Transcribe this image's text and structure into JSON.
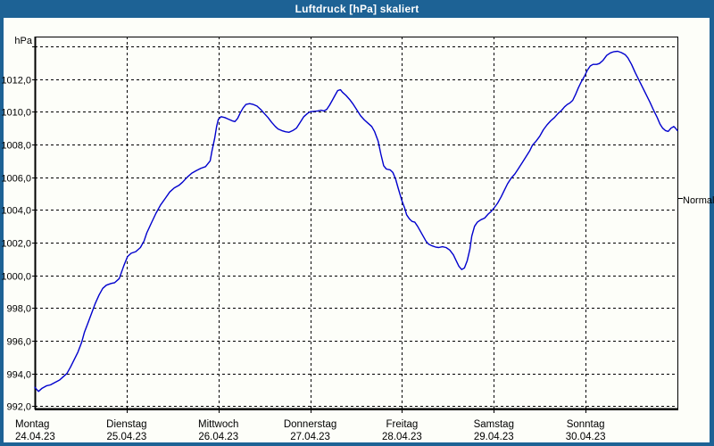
{
  "window": {
    "title": "Luftdruck [hPa] skaliert"
  },
  "colors": {
    "titlebar": "#1D6295",
    "frame": "#1D6295",
    "client_bg": "#FDFEF9",
    "line": "#0000CD",
    "grid": "#000000",
    "text": "#000000",
    "title_text": "#FFFFFF"
  },
  "axis": {
    "unit_label": "hPa",
    "decimal_separator": ",",
    "y_label_min": 992,
    "y_label_max": 1012,
    "y_tick_step": 2
  },
  "normal_marker": {
    "label": "Normal",
    "value": 1004.7
  },
  "chart_data": {
    "type": "line",
    "title": "Luftdruck [hPa] skaliert",
    "ylabel": "hPa",
    "ylim": [
      991.8,
      1014.6
    ],
    "xlim": [
      0,
      7
    ],
    "grid": true,
    "legend": "none",
    "y_gridline_values": [
      992,
      994,
      996,
      998,
      1000,
      1002,
      1004,
      1006,
      1008,
      1010,
      1012,
      1014
    ],
    "x_categories": [
      {
        "name": "Montag",
        "date": "24.04.23"
      },
      {
        "name": "Dienstag",
        "date": "25.04.23"
      },
      {
        "name": "Mittwoch",
        "date": "26.04.23"
      },
      {
        "name": "Donnerstag",
        "date": "27.04.23"
      },
      {
        "name": "Freitag",
        "date": "28.04.23"
      },
      {
        "name": "Samstag",
        "date": "29.04.23"
      },
      {
        "name": "Sonntag",
        "date": "30.04.23"
      }
    ],
    "annotations": [
      {
        "label": "Normal",
        "y": 1004.7,
        "side": "right"
      }
    ],
    "series": [
      {
        "name": "Luftdruck skaliert",
        "color": "#0000CD",
        "x_unit": "days since 24.04.23 00:00",
        "points": [
          [
            0.0,
            993.15
          ],
          [
            0.04,
            992.9
          ],
          [
            0.08,
            993.1
          ],
          [
            0.13,
            993.25
          ],
          [
            0.17,
            993.3
          ],
          [
            0.22,
            993.45
          ],
          [
            0.27,
            993.6
          ],
          [
            0.31,
            993.8
          ],
          [
            0.35,
            994.0
          ],
          [
            0.39,
            994.4
          ],
          [
            0.43,
            994.85
          ],
          [
            0.47,
            995.3
          ],
          [
            0.51,
            995.9
          ],
          [
            0.54,
            996.5
          ],
          [
            0.58,
            997.1
          ],
          [
            0.62,
            997.7
          ],
          [
            0.66,
            998.3
          ],
          [
            0.7,
            998.8
          ],
          [
            0.74,
            999.2
          ],
          [
            0.78,
            999.4
          ],
          [
            0.83,
            999.5
          ],
          [
            0.87,
            999.55
          ],
          [
            0.92,
            999.8
          ],
          [
            0.97,
            1000.6
          ],
          [
            1.01,
            1001.15
          ],
          [
            1.05,
            1001.35
          ],
          [
            1.1,
            1001.45
          ],
          [
            1.15,
            1001.7
          ],
          [
            1.19,
            1002.1
          ],
          [
            1.22,
            1002.6
          ],
          [
            1.27,
            1003.2
          ],
          [
            1.32,
            1003.8
          ],
          [
            1.37,
            1004.3
          ],
          [
            1.42,
            1004.7
          ],
          [
            1.47,
            1005.1
          ],
          [
            1.52,
            1005.35
          ],
          [
            1.57,
            1005.5
          ],
          [
            1.61,
            1005.7
          ],
          [
            1.66,
            1006.0
          ],
          [
            1.71,
            1006.25
          ],
          [
            1.76,
            1006.4
          ],
          [
            1.81,
            1006.55
          ],
          [
            1.86,
            1006.65
          ],
          [
            1.91,
            1007.0
          ],
          [
            1.93,
            1007.6
          ],
          [
            1.96,
            1008.4
          ],
          [
            1.98,
            1009.1
          ],
          [
            2.0,
            1009.55
          ],
          [
            2.03,
            1009.7
          ],
          [
            2.07,
            1009.65
          ],
          [
            2.11,
            1009.55
          ],
          [
            2.15,
            1009.45
          ],
          [
            2.18,
            1009.4
          ],
          [
            2.21,
            1009.6
          ],
          [
            2.24,
            1009.95
          ],
          [
            2.27,
            1010.25
          ],
          [
            2.3,
            1010.45
          ],
          [
            2.34,
            1010.5
          ],
          [
            2.38,
            1010.45
          ],
          [
            2.42,
            1010.35
          ],
          [
            2.46,
            1010.15
          ],
          [
            2.5,
            1009.9
          ],
          [
            2.54,
            1009.65
          ],
          [
            2.58,
            1009.35
          ],
          [
            2.62,
            1009.1
          ],
          [
            2.65,
            1008.95
          ],
          [
            2.69,
            1008.85
          ],
          [
            2.73,
            1008.78
          ],
          [
            2.77,
            1008.75
          ],
          [
            2.81,
            1008.85
          ],
          [
            2.85,
            1009.0
          ],
          [
            2.89,
            1009.35
          ],
          [
            2.93,
            1009.7
          ],
          [
            2.97,
            1009.9
          ],
          [
            3.0,
            1010.0
          ],
          [
            3.04,
            1010.03
          ],
          [
            3.08,
            1010.05
          ],
          [
            3.12,
            1010.1
          ],
          [
            3.15,
            1010.05
          ],
          [
            3.18,
            1010.15
          ],
          [
            3.21,
            1010.4
          ],
          [
            3.24,
            1010.7
          ],
          [
            3.27,
            1011.0
          ],
          [
            3.3,
            1011.3
          ],
          [
            3.33,
            1011.35
          ],
          [
            3.35,
            1011.2
          ],
          [
            3.39,
            1011.0
          ],
          [
            3.43,
            1010.75
          ],
          [
            3.47,
            1010.45
          ],
          [
            3.51,
            1010.1
          ],
          [
            3.55,
            1009.75
          ],
          [
            3.59,
            1009.5
          ],
          [
            3.63,
            1009.3
          ],
          [
            3.67,
            1009.1
          ],
          [
            3.7,
            1008.8
          ],
          [
            3.74,
            1008.2
          ],
          [
            3.77,
            1007.4
          ],
          [
            3.8,
            1006.7
          ],
          [
            3.83,
            1006.5
          ],
          [
            3.87,
            1006.45
          ],
          [
            3.9,
            1006.3
          ],
          [
            3.93,
            1005.9
          ],
          [
            3.96,
            1005.3
          ],
          [
            4.0,
            1004.55
          ],
          [
            4.03,
            1004.1
          ],
          [
            4.05,
            1003.7
          ],
          [
            4.08,
            1003.45
          ],
          [
            4.11,
            1003.3
          ],
          [
            4.14,
            1003.25
          ],
          [
            4.17,
            1003.0
          ],
          [
            4.2,
            1002.7
          ],
          [
            4.23,
            1002.4
          ],
          [
            4.26,
            1002.1
          ],
          [
            4.29,
            1001.9
          ],
          [
            4.33,
            1001.8
          ],
          [
            4.37,
            1001.72
          ],
          [
            4.4,
            1001.7
          ],
          [
            4.44,
            1001.75
          ],
          [
            4.48,
            1001.7
          ],
          [
            4.52,
            1001.55
          ],
          [
            4.56,
            1001.25
          ],
          [
            4.59,
            1000.9
          ],
          [
            4.62,
            1000.55
          ],
          [
            4.65,
            1000.35
          ],
          [
            4.68,
            1000.45
          ],
          [
            4.71,
            1000.9
          ],
          [
            4.74,
            1001.6
          ],
          [
            4.76,
            1002.4
          ],
          [
            4.79,
            1003.0
          ],
          [
            4.82,
            1003.25
          ],
          [
            4.86,
            1003.4
          ],
          [
            4.9,
            1003.5
          ],
          [
            4.94,
            1003.75
          ],
          [
            4.97,
            1003.9
          ],
          [
            5.0,
            1004.1
          ],
          [
            5.04,
            1004.4
          ],
          [
            5.08,
            1004.8
          ],
          [
            5.11,
            1005.15
          ],
          [
            5.15,
            1005.6
          ],
          [
            5.19,
            1005.95
          ],
          [
            5.23,
            1006.2
          ],
          [
            5.27,
            1006.55
          ],
          [
            5.31,
            1006.9
          ],
          [
            5.35,
            1007.25
          ],
          [
            5.39,
            1007.6
          ],
          [
            5.42,
            1007.95
          ],
          [
            5.46,
            1008.2
          ],
          [
            5.5,
            1008.5
          ],
          [
            5.54,
            1008.9
          ],
          [
            5.58,
            1009.2
          ],
          [
            5.62,
            1009.45
          ],
          [
            5.66,
            1009.65
          ],
          [
            5.7,
            1009.9
          ],
          [
            5.74,
            1010.1
          ],
          [
            5.77,
            1010.3
          ],
          [
            5.8,
            1010.45
          ],
          [
            5.83,
            1010.55
          ],
          [
            5.86,
            1010.7
          ],
          [
            5.89,
            1011.05
          ],
          [
            5.92,
            1011.45
          ],
          [
            5.95,
            1011.8
          ],
          [
            5.99,
            1012.2
          ],
          [
            6.02,
            1012.55
          ],
          [
            6.05,
            1012.8
          ],
          [
            6.08,
            1012.9
          ],
          [
            6.12,
            1012.9
          ],
          [
            6.15,
            1012.95
          ],
          [
            6.19,
            1013.15
          ],
          [
            6.23,
            1013.45
          ],
          [
            6.27,
            1013.6
          ],
          [
            6.31,
            1013.68
          ],
          [
            6.35,
            1013.7
          ],
          [
            6.39,
            1013.62
          ],
          [
            6.43,
            1013.5
          ],
          [
            6.46,
            1013.3
          ],
          [
            6.5,
            1012.9
          ],
          [
            6.54,
            1012.4
          ],
          [
            6.58,
            1011.95
          ],
          [
            6.62,
            1011.5
          ],
          [
            6.66,
            1011.05
          ],
          [
            6.7,
            1010.6
          ],
          [
            6.74,
            1010.1
          ],
          [
            6.78,
            1009.65
          ],
          [
            6.81,
            1009.25
          ],
          [
            6.84,
            1009.0
          ],
          [
            6.87,
            1008.85
          ],
          [
            6.9,
            1008.8
          ],
          [
            6.93,
            1009.0
          ],
          [
            6.96,
            1009.1
          ],
          [
            6.98,
            1009.0
          ],
          [
            7.0,
            1008.85
          ]
        ]
      }
    ]
  }
}
